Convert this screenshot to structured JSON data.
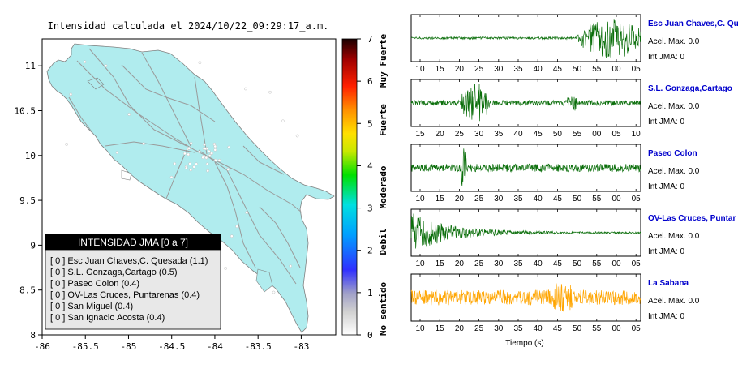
{
  "title": "Intensidad calculada el 2024/10/22_09:29:17_a.m.",
  "colors": {
    "land": "#b0ecee",
    "road": "#999999",
    "waveform_green": "#0a6e0a",
    "waveform_orange": "#ffa500",
    "station_name": "#0000cc",
    "legend_header_bg": "#000000",
    "legend_bg": "#e8e8e8"
  },
  "map": {
    "x_ticks": [
      "-86",
      "-85.5",
      "-85",
      "-84.5",
      "-84",
      "-83.5",
      "-83"
    ],
    "y_ticks": [
      "11",
      "10.5",
      "10",
      "9.5",
      "9",
      "8.5",
      "8"
    ],
    "xlim": [
      -86,
      -82.6
    ],
    "ylim": [
      8,
      11.3
    ]
  },
  "intensity_scale": {
    "ticks": [
      "0",
      "1",
      "2",
      "3",
      "4",
      "5",
      "6",
      "7"
    ],
    "categories": [
      "No sentido",
      "Debil",
      "Moderado",
      "Fuerte",
      "Muy Fuerte"
    ],
    "colors": [
      "#ffffff",
      "#b8b8b8",
      "#3a3aff",
      "#00c8ff",
      "#00e000",
      "#c8e600",
      "#ffdd00",
      "#ff8800",
      "#ff2200",
      "#b00000",
      "#200000"
    ]
  },
  "legend": {
    "title": "INTENSIDAD JMA [0 a 7]",
    "items": [
      {
        "text": "[ 0 ]  Esc Juan Chaves,C. Quesada (1.1)"
      },
      {
        "text": "[ 0 ]  S.L. Gonzaga,Cartago (0.5)"
      },
      {
        "text": "[ 0 ]  Paseo Colon (0.4)"
      },
      {
        "text": "[ 0 ]  OV-Las Cruces, Puntarenas (0.4)"
      },
      {
        "text": "[ 0 ]  San Miguel (0.4)"
      },
      {
        "text": "[ 0 ]  San Ignacio Acosta (0.4)"
      }
    ]
  },
  "stations": [
    {
      "name": "Esc Juan Chaves,C. Qu",
      "acel": "Acel. Max. 0.0",
      "int": "Int JMA: 0",
      "color": "green",
      "ticks": [
        "10",
        "15",
        "20",
        "25",
        "30",
        "35",
        "40",
        "45",
        "50",
        "55",
        "00",
        "05"
      ],
      "pattern": "late"
    },
    {
      "name": "S.L. Gonzaga,Cartago",
      "acel": "Acel. Max. 0.0",
      "int": "Int JMA: 0",
      "color": "green",
      "ticks": [
        "15",
        "20",
        "25",
        "30",
        "35",
        "40",
        "45",
        "50",
        "55",
        "00",
        "05",
        "10"
      ],
      "pattern": "early"
    },
    {
      "name": "Paseo Colon",
      "acel": "Acel. Max. 0.0",
      "int": "Int JMA: 0",
      "color": "green",
      "ticks": [
        "10",
        "15",
        "20",
        "25",
        "30",
        "35",
        "40",
        "45",
        "50",
        "55",
        "00",
        "05"
      ],
      "pattern": "spike"
    },
    {
      "name": "OV-Las Cruces, Puntar",
      "acel": "Acel. Max. 0.0",
      "int": "Int JMA: 0",
      "color": "green",
      "ticks": [
        "10",
        "15",
        "20",
        "25",
        "30",
        "35",
        "40",
        "45",
        "50",
        "55",
        "00",
        "05"
      ],
      "pattern": "decay"
    },
    {
      "name": "La Sabana",
      "acel": "Acel. Max. 0.0",
      "int": "Int JMA: 0",
      "color": "orange",
      "ticks": [
        "10",
        "15",
        "20",
        "25",
        "30",
        "35",
        "40",
        "45",
        "50",
        "55",
        "00",
        "05"
      ],
      "pattern": "noise"
    }
  ],
  "waveform_xlabel": "Tiempo (s)",
  "chart_data": [
    {
      "type": "heatmap",
      "title": "Intensidad calculada el 2024/10/22_09:29:17_a.m.",
      "xlim": [
        -86,
        -82.6
      ],
      "ylim": [
        8,
        11.3
      ],
      "x_ticks": [
        -86,
        -85.5,
        -85,
        -84.5,
        -84,
        -83.5,
        -83
      ],
      "y_ticks": [
        8,
        8.5,
        9,
        9.5,
        10,
        10.5,
        11
      ],
      "colorbar": {
        "range": [
          0,
          7
        ],
        "labels": [
          "No sentido",
          "Debil",
          "Moderado",
          "Fuerte",
          "Muy Fuerte"
        ]
      }
    },
    {
      "type": "line",
      "xlabel": "Tiempo (s)",
      "series_count": 5
    }
  ]
}
